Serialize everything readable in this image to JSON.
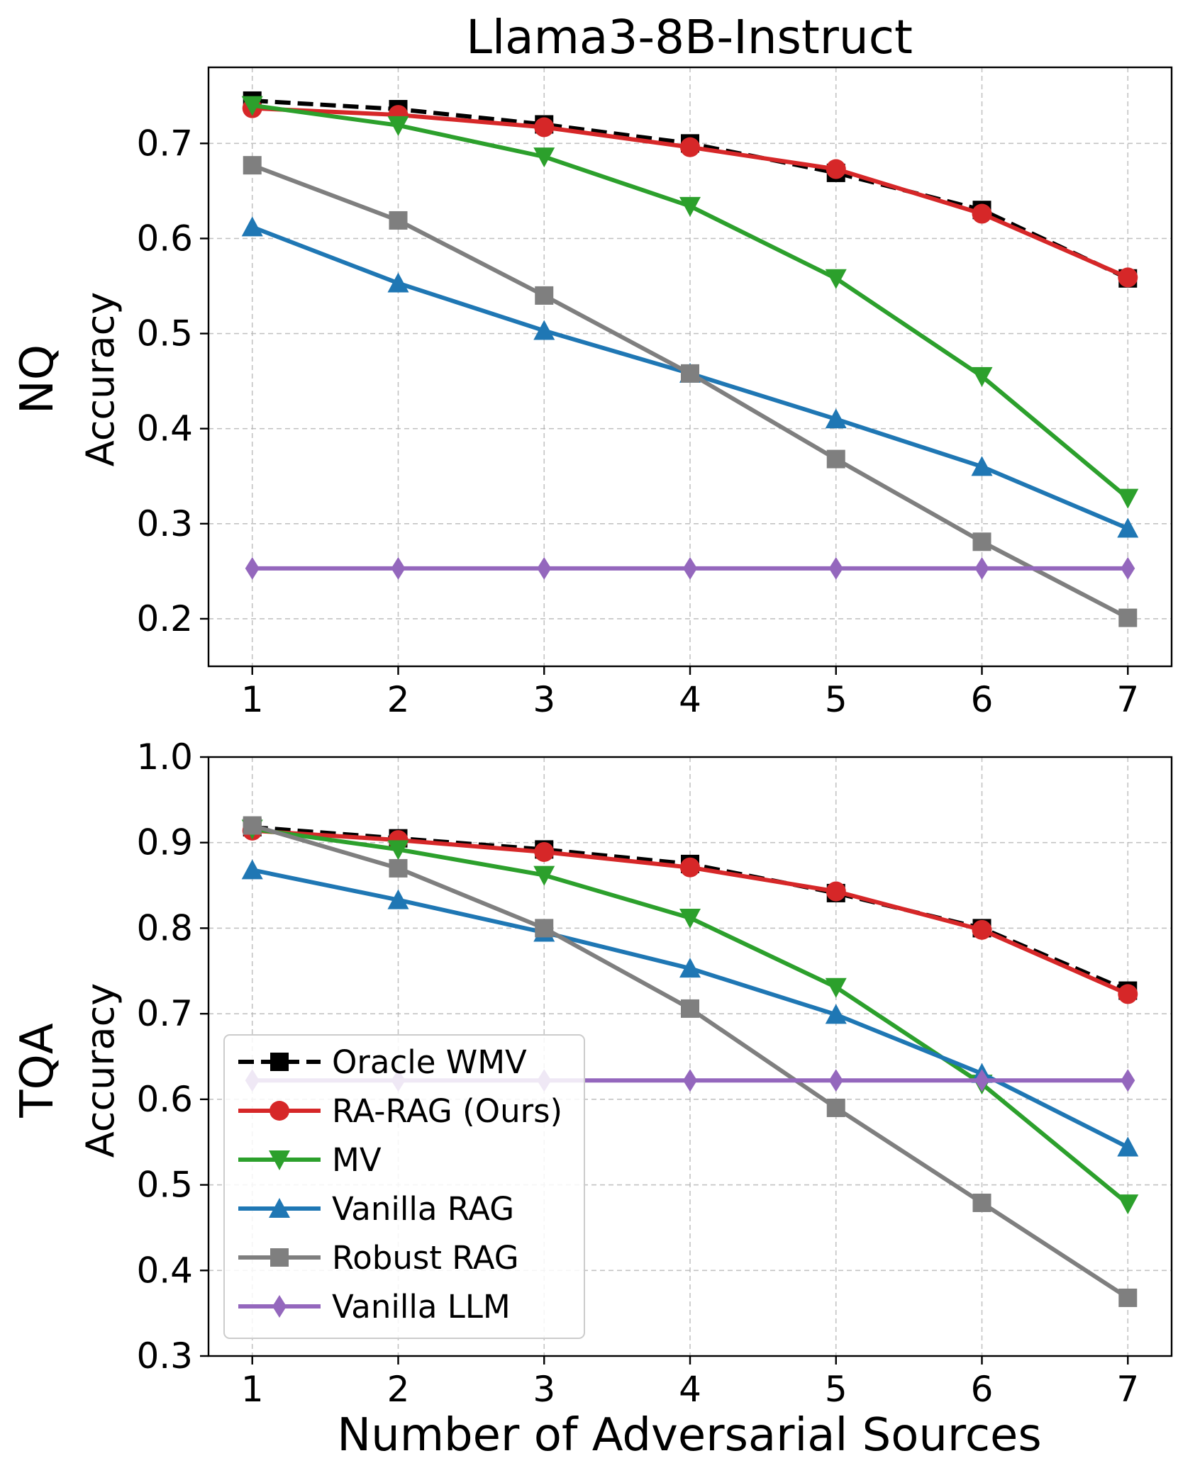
{
  "chart_data": [
    {
      "type": "line",
      "title": "Llama3-8B-Instruct",
      "ylabel_main": "NQ",
      "ylabel": "Accuracy",
      "xlabel": "",
      "x": [
        1,
        2,
        3,
        4,
        5,
        6,
        7
      ],
      "xticks": [
        "1",
        "2",
        "3",
        "4",
        "5",
        "6",
        "7"
      ],
      "xlim": [
        0.7,
        7.3
      ],
      "ylim": [
        0.15,
        0.78
      ],
      "yticks": [
        0.2,
        0.3,
        0.4,
        0.5,
        0.6,
        0.7
      ],
      "ytick_labels": [
        "0.2",
        "0.3",
        "0.4",
        "0.5",
        "0.6",
        "0.7"
      ],
      "grid": true,
      "series": [
        {
          "name": "Oracle WMV",
          "color": "#000000",
          "marker": "square",
          "dashed": true,
          "values": [
            0.745,
            0.736,
            0.72,
            0.7,
            0.669,
            0.63,
            0.558
          ]
        },
        {
          "name": "RA-RAG (Ours)",
          "color": "#d62728",
          "marker": "circle",
          "dashed": false,
          "values": [
            0.737,
            0.73,
            0.717,
            0.696,
            0.673,
            0.626,
            0.559
          ]
        },
        {
          "name": "MV",
          "color": "#2ca02c",
          "marker": "triangle-down",
          "dashed": false,
          "values": [
            0.74,
            0.719,
            0.686,
            0.634,
            0.558,
            0.455,
            0.327
          ]
        },
        {
          "name": "Vanilla RAG",
          "color": "#1f77b4",
          "marker": "triangle-up",
          "dashed": false,
          "values": [
            0.612,
            0.553,
            0.503,
            0.458,
            0.41,
            0.36,
            0.295
          ]
        },
        {
          "name": "Robust RAG",
          "color": "#7f7f7f",
          "marker": "square",
          "dashed": false,
          "values": [
            0.677,
            0.619,
            0.54,
            0.458,
            0.368,
            0.281,
            0.201
          ]
        },
        {
          "name": "Vanilla LLM",
          "color": "#9467bd",
          "marker": "diamond",
          "dashed": false,
          "values": [
            0.253,
            0.253,
            0.253,
            0.253,
            0.253,
            0.253,
            0.253
          ]
        }
      ]
    },
    {
      "type": "line",
      "title": "",
      "ylabel_main": "TQA",
      "ylabel": "Accuracy",
      "xlabel": "Number of Adversarial Sources",
      "x": [
        1,
        2,
        3,
        4,
        5,
        6,
        7
      ],
      "xticks": [
        "1",
        "2",
        "3",
        "4",
        "5",
        "6",
        "7"
      ],
      "xlim": [
        0.7,
        7.3
      ],
      "ylim": [
        0.3,
        1.0
      ],
      "yticks": [
        0.3,
        0.4,
        0.5,
        0.6,
        0.7,
        0.8,
        0.9,
        1.0
      ],
      "ytick_labels": [
        "0.3",
        "0.4",
        "0.5",
        "0.6",
        "0.7",
        "0.8",
        "0.9",
        "1.0"
      ],
      "grid": true,
      "legend": "lower-left",
      "series": [
        {
          "name": "Oracle WMV",
          "color": "#000000",
          "marker": "square",
          "dashed": true,
          "values": [
            0.918,
            0.905,
            0.892,
            0.875,
            0.841,
            0.8,
            0.727
          ]
        },
        {
          "name": "RA-RAG (Ours)",
          "color": "#d62728",
          "marker": "circle",
          "dashed": false,
          "values": [
            0.914,
            0.903,
            0.889,
            0.871,
            0.843,
            0.798,
            0.723
          ]
        },
        {
          "name": "MV",
          "color": "#2ca02c",
          "marker": "triangle-down",
          "dashed": false,
          "values": [
            0.916,
            0.892,
            0.862,
            0.812,
            0.731,
            0.618,
            0.478
          ]
        },
        {
          "name": "Vanilla RAG",
          "color": "#1f77b4",
          "marker": "triangle-up",
          "dashed": false,
          "values": [
            0.868,
            0.833,
            0.795,
            0.753,
            0.699,
            0.63,
            0.544
          ]
        },
        {
          "name": "Robust RAG",
          "color": "#7f7f7f",
          "marker": "square",
          "dashed": false,
          "values": [
            0.92,
            0.87,
            0.8,
            0.706,
            0.59,
            0.479,
            0.368
          ]
        },
        {
          "name": "Vanilla LLM",
          "color": "#9467bd",
          "marker": "diamond",
          "dashed": false,
          "values": [
            0.622,
            0.622,
            0.622,
            0.622,
            0.622,
            0.622,
            0.622
          ]
        }
      ]
    }
  ]
}
